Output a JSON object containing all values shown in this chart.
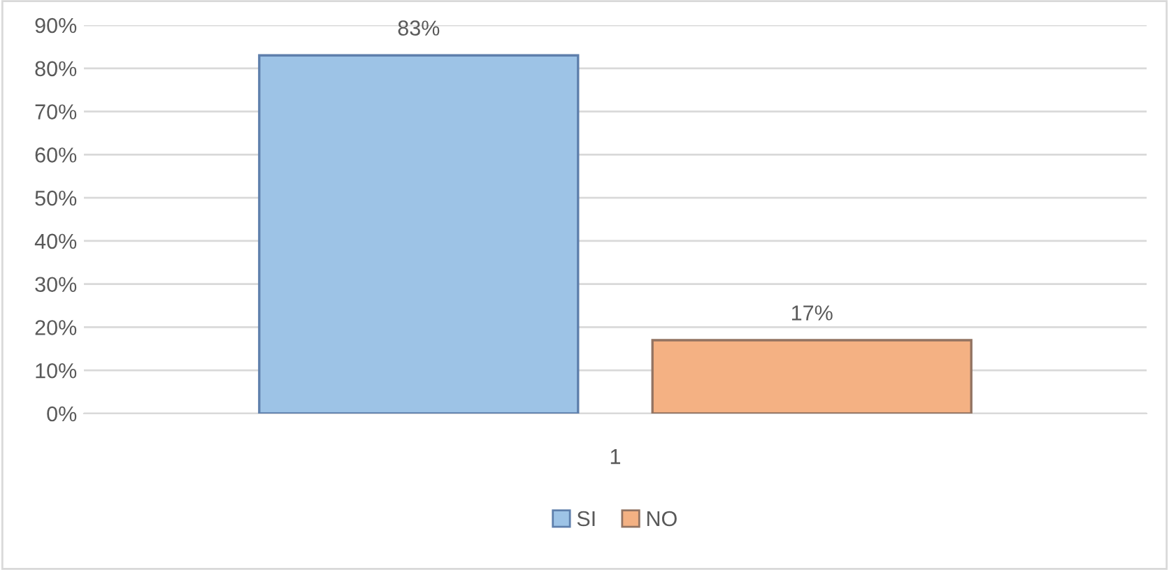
{
  "chart_data": {
    "type": "bar",
    "categories": [
      "1"
    ],
    "series": [
      {
        "name": "SI",
        "color": "#9dc3e6",
        "values": [
          83
        ],
        "value_labels": [
          "83%"
        ]
      },
      {
        "name": "NO",
        "color": "#f4b183",
        "values": [
          17
        ],
        "value_labels": [
          "17%"
        ]
      }
    ],
    "ylim": [
      0,
      90
    ],
    "yticks": [
      {
        "value": 0,
        "label": "0%"
      },
      {
        "value": 10,
        "label": "10%"
      },
      {
        "value": 20,
        "label": "20%"
      },
      {
        "value": 30,
        "label": "30%"
      },
      {
        "value": 40,
        "label": "40%"
      },
      {
        "value": 50,
        "label": "50%"
      },
      {
        "value": 60,
        "label": "60%"
      },
      {
        "value": 70,
        "label": "70%"
      },
      {
        "value": 80,
        "label": "80%"
      },
      {
        "value": 90,
        "label": "90%"
      }
    ],
    "grid": "y",
    "legend": "bottom"
  }
}
